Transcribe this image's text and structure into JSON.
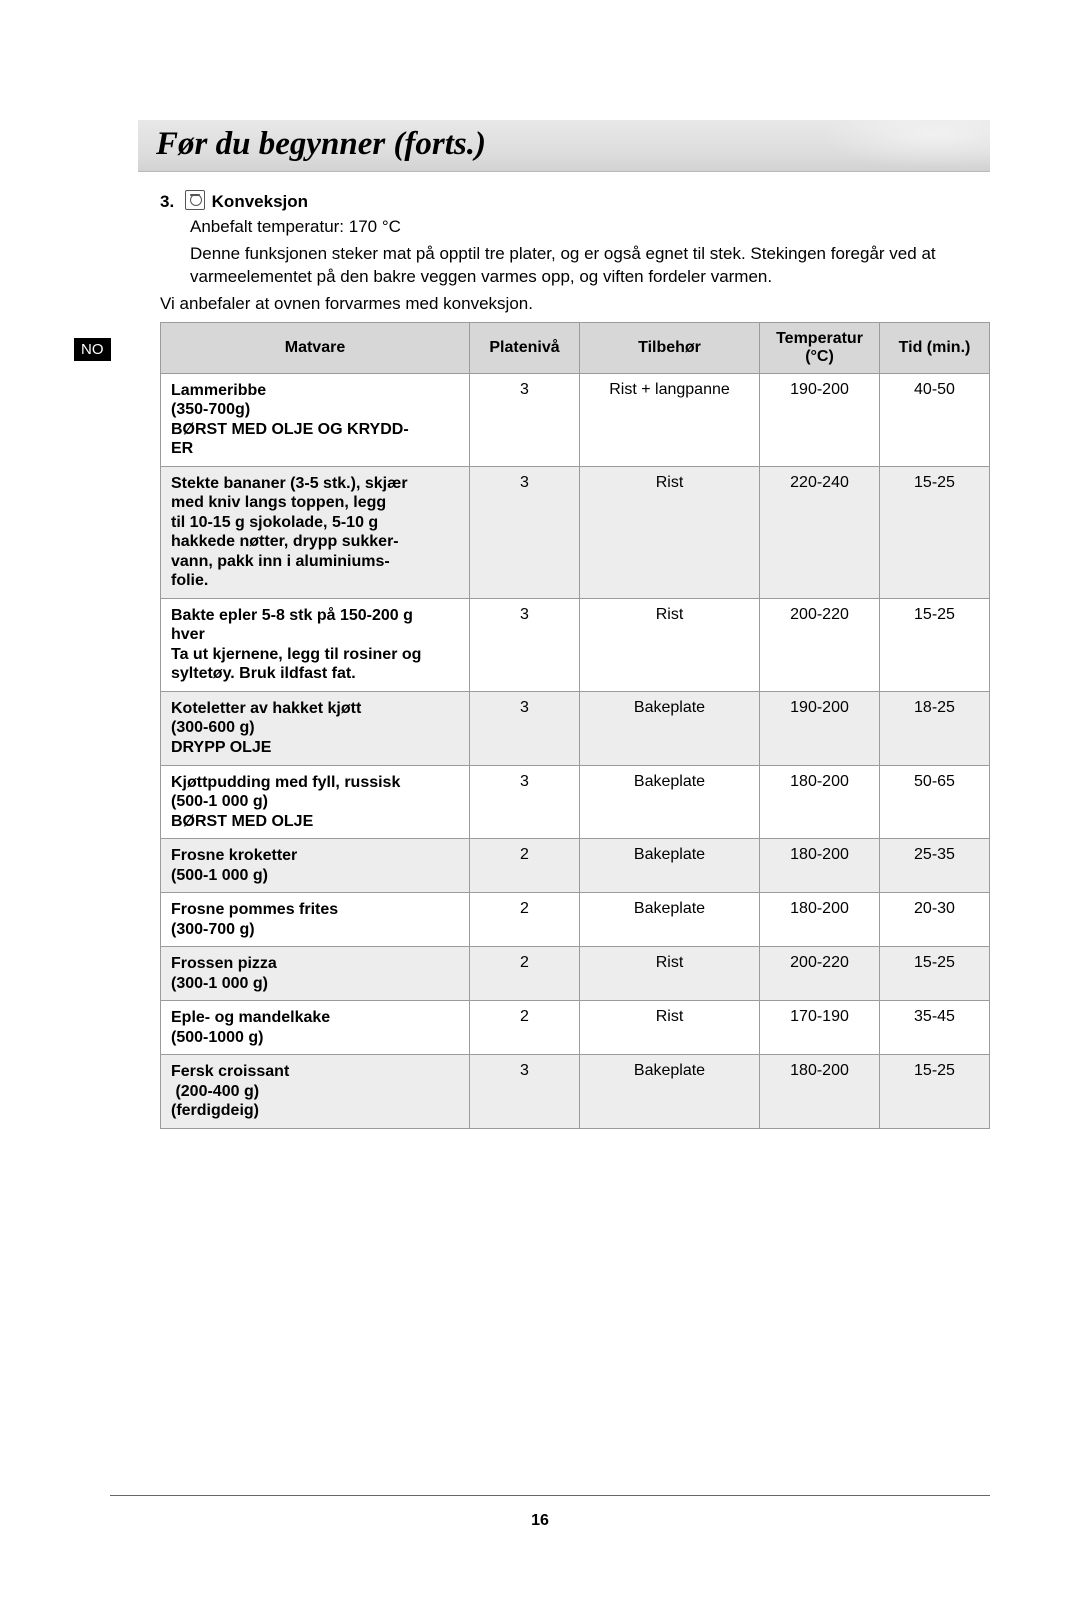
{
  "title": "Før du begynner (forts.)",
  "lang_badge": "NO",
  "section": {
    "number": "3.",
    "heading": "Konveksjon",
    "rec_temp": "Anbefalt temperatur: 170 °C",
    "desc": "Denne funksjonen steker mat på opptil tre plater, og er også egnet til stek. Stekingen foregår ved at varmeelementet på den bakre veggen varmes opp, og viften fordeler varmen.",
    "preheat": "Vi anbefaler at ovnen forvarmes med konveksjon."
  },
  "table": {
    "headers": {
      "food": "Matvare",
      "level": "Platenivå",
      "accessory": "Tilbehør",
      "temp": "Temperatur (°C)",
      "time": "Tid (min.)"
    },
    "rows": [
      {
        "food_lines": [
          "Lammeribbe",
          "(350-700g)",
          "BØRST MED OLJE OG KRYDD-",
          "ER"
        ],
        "level": "3",
        "acc": "Rist + langpanne",
        "temp": "190-200",
        "time": "40-50",
        "shade": false
      },
      {
        "food_lines": [
          "Stekte bananer (3-5 stk.), skjær",
          "med kniv langs toppen, legg",
          "til 10-15 g sjokolade, 5-10 g",
          "hakkede nøtter, drypp sukker-",
          "vann, pakk inn i aluminiums-",
          "folie."
        ],
        "level": "3",
        "acc": "Rist",
        "temp": "220-240",
        "time": "15-25",
        "shade": true
      },
      {
        "food_lines": [
          "Bakte epler 5-8 stk på 150-200 g",
          "hver",
          "Ta ut kjernene, legg til rosiner og",
          "syltetøy. Bruk ildfast fat."
        ],
        "level": "3",
        "acc": "Rist",
        "temp": "200-220",
        "time": "15-25",
        "shade": false
      },
      {
        "food_lines": [
          "Koteletter av hakket kjøtt",
          "(300-600 g)",
          "DRYPP OLJE"
        ],
        "level": "3",
        "acc": "Bakeplate",
        "temp": "190-200",
        "time": "18-25",
        "shade": true
      },
      {
        "food_lines": [
          "Kjøttpudding med fyll, russisk",
          "(500-1 000 g)",
          "BØRST MED OLJE"
        ],
        "level": "3",
        "acc": "Bakeplate",
        "temp": "180-200",
        "time": "50-65",
        "shade": false
      },
      {
        "food_lines": [
          "Frosne kroketter",
          "(500-1 000 g)"
        ],
        "level": "2",
        "acc": "Bakeplate",
        "temp": "180-200",
        "time": "25-35",
        "shade": true
      },
      {
        "food_lines": [
          "Frosne pommes frites",
          "(300-700 g)"
        ],
        "level": "2",
        "acc": "Bakeplate",
        "temp": "180-200",
        "time": "20-30",
        "shade": false
      },
      {
        "food_lines": [
          "Frossen pizza",
          "(300-1 000 g)"
        ],
        "level": "2",
        "acc": "Rist",
        "temp": "200-220",
        "time": "15-25",
        "shade": true
      },
      {
        "food_lines": [
          "Eple- og mandelkake",
          "(500-1000 g)"
        ],
        "level": "2",
        "acc": "Rist",
        "temp": "170-190",
        "time": "35-45",
        "shade": false
      },
      {
        "food_lines": [
          "Fersk croissant",
          " (200-400 g)",
          "(ferdigdeig)"
        ],
        "level": "3",
        "acc": "Bakeplate",
        "temp": "180-200",
        "time": "15-25",
        "shade": true
      }
    ]
  },
  "page_number": "16"
}
